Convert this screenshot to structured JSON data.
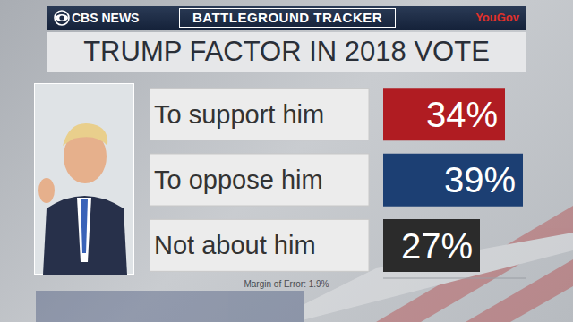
{
  "chart_data": {
    "type": "bar",
    "title": "TRUMP FACTOR IN 2018 VOTE",
    "subtitle": "BATTLEGROUND TRACKER",
    "annotations": [
      "CBS NEWS",
      "YouGov",
      "Margin of Error: 1.9%"
    ],
    "orientation": "horizontal",
    "categories": [
      "To support him",
      "To oppose him",
      "Not about him"
    ],
    "values": [
      34,
      39,
      27
    ],
    "value_labels": [
      "34%",
      "39%",
      "27%"
    ],
    "colors": [
      "#b01c22",
      "#1c3f73",
      "#2b2b2b"
    ],
    "xlim": [
      0,
      40
    ],
    "data_labels": true,
    "tick_labels": "y"
  }
}
